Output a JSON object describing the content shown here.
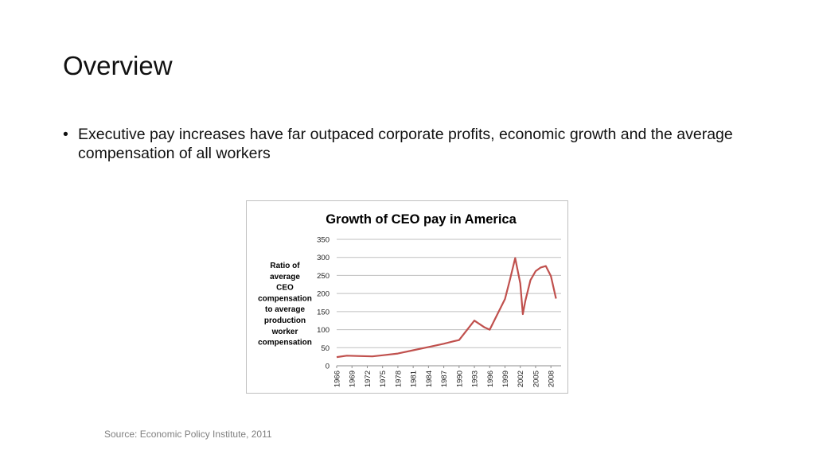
{
  "slide": {
    "title": "Overview",
    "bullets": [
      {
        "marker": "•",
        "text": "Executive pay increases have far outpaced corporate profits, economic growth and the average compensation of all workers"
      }
    ],
    "source": "Source: Economic Policy Institute, 2011"
  },
  "chart_data": {
    "type": "line",
    "title": "Growth of CEO pay in America",
    "ylabel_lines": [
      "Ratio of",
      "average",
      "CEO",
      "compensation",
      "to average",
      "production",
      "worker",
      "compensation"
    ],
    "xlabel": "",
    "ylim": [
      0,
      350
    ],
    "yticks": [
      0,
      50,
      100,
      150,
      200,
      250,
      300,
      350
    ],
    "xlim": [
      1966,
      2010
    ],
    "xticks": [
      1966,
      1969,
      1972,
      1975,
      1978,
      1981,
      1984,
      1987,
      1990,
      1993,
      1996,
      1999,
      2002,
      2005,
      2008
    ],
    "grid": true,
    "legend": "none",
    "series": [
      {
        "color": "#c0504d",
        "points": [
          [
            1966,
            24
          ],
          [
            1968,
            28
          ],
          [
            1970,
            27
          ],
          [
            1973,
            26
          ],
          [
            1975,
            29
          ],
          [
            1978,
            34
          ],
          [
            1981,
            43
          ],
          [
            1984,
            52
          ],
          [
            1987,
            61
          ],
          [
            1989,
            68
          ],
          [
            1990,
            71
          ],
          [
            1993,
            125
          ],
          [
            1995,
            106
          ],
          [
            1996,
            100
          ],
          [
            1999,
            185
          ],
          [
            2000,
            240
          ],
          [
            2001,
            298
          ],
          [
            2002,
            228
          ],
          [
            2002.5,
            143
          ],
          [
            2003,
            180
          ],
          [
            2004,
            237
          ],
          [
            2005,
            262
          ],
          [
            2006,
            272
          ],
          [
            2007,
            276
          ],
          [
            2008,
            248
          ],
          [
            2009,
            186
          ]
        ]
      }
    ]
  }
}
